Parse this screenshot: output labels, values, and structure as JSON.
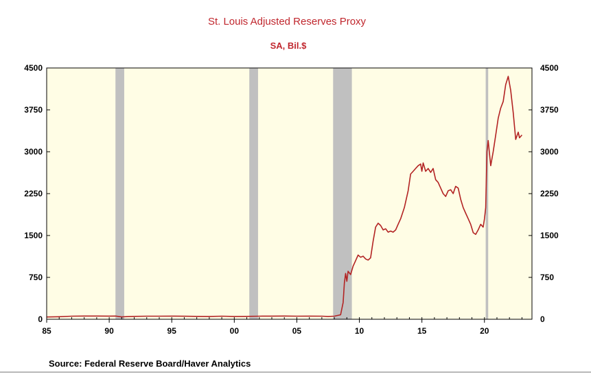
{
  "chart_data": {
    "type": "line",
    "title": "St. Louis Adjusted Reserves Proxy",
    "subtitle": "SA, Bil.$",
    "source": "Source:  Federal Reserve Board/Haver Analytics",
    "xlim": [
      1985,
      2023.8
    ],
    "ylim": [
      0,
      4500
    ],
    "y_ticks": [
      0,
      750,
      1500,
      2250,
      3000,
      3750,
      4500
    ],
    "x_ticks": [
      {
        "year": 1985,
        "label": "85"
      },
      {
        "year": 1990,
        "label": "90"
      },
      {
        "year": 1995,
        "label": "95"
      },
      {
        "year": 2000,
        "label": "00"
      },
      {
        "year": 2005,
        "label": "05"
      },
      {
        "year": 2010,
        "label": "10"
      },
      {
        "year": 2015,
        "label": "15"
      },
      {
        "year": 2020,
        "label": "20"
      }
    ],
    "recessions": [
      {
        "start": 1990.5,
        "end": 1991.2
      },
      {
        "start": 2001.2,
        "end": 2001.9
      },
      {
        "start": 2007.9,
        "end": 2009.4
      },
      {
        "start": 2020.1,
        "end": 2020.3
      }
    ],
    "colors": {
      "line": "#b22222",
      "plot_bg": "#fffde5",
      "recession": "#c0c0c0",
      "title": "#c0262d"
    },
    "series": [
      {
        "color": "#b22222",
        "points": [
          [
            1985.0,
            40
          ],
          [
            1986.0,
            45
          ],
          [
            1987.0,
            55
          ],
          [
            1988.0,
            58
          ],
          [
            1989.0,
            58
          ],
          [
            1990.0,
            57
          ],
          [
            1990.5,
            58
          ],
          [
            1991.0,
            42
          ],
          [
            1991.5,
            48
          ],
          [
            1992.0,
            52
          ],
          [
            1993.0,
            55
          ],
          [
            1994.0,
            55
          ],
          [
            1995.0,
            56
          ],
          [
            1996.0,
            54
          ],
          [
            1997.0,
            52
          ],
          [
            1998.0,
            50
          ],
          [
            1999.0,
            55
          ],
          [
            2000.0,
            50
          ],
          [
            2001.0,
            52
          ],
          [
            2002.0,
            55
          ],
          [
            2003.0,
            56
          ],
          [
            2004.0,
            58
          ],
          [
            2005.0,
            55
          ],
          [
            2006.0,
            56
          ],
          [
            2007.0,
            55
          ],
          [
            2007.5,
            50
          ],
          [
            2008.0,
            55
          ],
          [
            2008.5,
            80
          ],
          [
            2008.7,
            300
          ],
          [
            2008.8,
            650
          ],
          [
            2008.9,
            820
          ],
          [
            2009.0,
            680
          ],
          [
            2009.1,
            860
          ],
          [
            2009.3,
            800
          ],
          [
            2009.5,
            950
          ],
          [
            2009.7,
            1050
          ],
          [
            2009.9,
            1150
          ],
          [
            2010.1,
            1110
          ],
          [
            2010.3,
            1130
          ],
          [
            2010.5,
            1080
          ],
          [
            2010.7,
            1060
          ],
          [
            2010.9,
            1100
          ],
          [
            2011.1,
            1400
          ],
          [
            2011.3,
            1650
          ],
          [
            2011.5,
            1720
          ],
          [
            2011.7,
            1680
          ],
          [
            2011.9,
            1600
          ],
          [
            2012.1,
            1620
          ],
          [
            2012.3,
            1560
          ],
          [
            2012.5,
            1580
          ],
          [
            2012.7,
            1560
          ],
          [
            2012.9,
            1600
          ],
          [
            2013.1,
            1700
          ],
          [
            2013.3,
            1800
          ],
          [
            2013.6,
            2000
          ],
          [
            2013.9,
            2300
          ],
          [
            2014.1,
            2600
          ],
          [
            2014.3,
            2650
          ],
          [
            2014.5,
            2700
          ],
          [
            2014.7,
            2750
          ],
          [
            2014.9,
            2780
          ],
          [
            2015.0,
            2650
          ],
          [
            2015.1,
            2800
          ],
          [
            2015.3,
            2650
          ],
          [
            2015.5,
            2700
          ],
          [
            2015.7,
            2630
          ],
          [
            2015.9,
            2700
          ],
          [
            2016.1,
            2500
          ],
          [
            2016.3,
            2450
          ],
          [
            2016.5,
            2350
          ],
          [
            2016.7,
            2250
          ],
          [
            2016.9,
            2200
          ],
          [
            2017.1,
            2300
          ],
          [
            2017.3,
            2320
          ],
          [
            2017.5,
            2250
          ],
          [
            2017.7,
            2380
          ],
          [
            2017.9,
            2350
          ],
          [
            2018.1,
            2150
          ],
          [
            2018.3,
            2000
          ],
          [
            2018.5,
            1900
          ],
          [
            2018.7,
            1800
          ],
          [
            2018.9,
            1700
          ],
          [
            2019.1,
            1550
          ],
          [
            2019.3,
            1520
          ],
          [
            2019.5,
            1600
          ],
          [
            2019.7,
            1700
          ],
          [
            2019.9,
            1650
          ],
          [
            2020.0,
            1800
          ],
          [
            2020.1,
            2000
          ],
          [
            2020.2,
            3000
          ],
          [
            2020.3,
            3200
          ],
          [
            2020.5,
            2750
          ],
          [
            2020.7,
            3000
          ],
          [
            2020.9,
            3300
          ],
          [
            2021.1,
            3600
          ],
          [
            2021.3,
            3780
          ],
          [
            2021.5,
            3900
          ],
          [
            2021.7,
            4200
          ],
          [
            2021.9,
            4350
          ],
          [
            2022.1,
            4100
          ],
          [
            2022.3,
            3700
          ],
          [
            2022.5,
            3220
          ],
          [
            2022.7,
            3350
          ],
          [
            2022.8,
            3250
          ],
          [
            2023.0,
            3300
          ]
        ]
      }
    ]
  }
}
